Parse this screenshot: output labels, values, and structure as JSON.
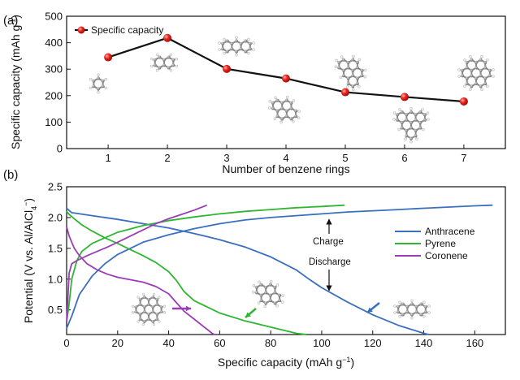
{
  "chart_data": [
    {
      "type": "line",
      "panel_label": "(a)",
      "xlabel": "Number of benzene rings",
      "ylabel_main": "Specific capacity (mAh g",
      "ylabel_sup": "-1",
      "ylabel_end": ")",
      "xlim": [
        0.3,
        7.7
      ],
      "ylim": [
        0,
        500
      ],
      "xticks": [
        1,
        2,
        3,
        4,
        5,
        6,
        7
      ],
      "yticks": [
        0,
        100,
        200,
        300,
        400,
        500
      ],
      "legend": "top-left",
      "series": [
        {
          "name": "Specific capacity",
          "color": "#e0201b",
          "x": [
            1,
            2,
            3,
            4,
            5,
            6,
            7
          ],
          "y": [
            345,
            418,
            301,
            265,
            213,
            195,
            178
          ]
        }
      ],
      "molecule_icons": [
        "benzene",
        "naphthalene",
        "anthracene",
        "pyrene",
        "perylene",
        "benzoperylene",
        "coronene"
      ]
    },
    {
      "type": "line",
      "panel_label": "(b)",
      "xlabel": "Specific capacity (mAh g",
      "xlabel_sup": "−1",
      "xlabel_end": ")",
      "ylabel_main": "Potential (V vs. Al/AlCl",
      "ylabel_sub": "4",
      "ylabel_sup": "−",
      "ylabel_end": ")",
      "xlim": [
        0,
        172
      ],
      "ylim": [
        0.1,
        2.5
      ],
      "xticks": [
        0,
        20,
        40,
        60,
        80,
        100,
        120,
        140,
        160
      ],
      "yticks": [
        0.5,
        1.0,
        1.5,
        2.0,
        2.5
      ],
      "ytick_labels": [
        "0.5",
        "1.0",
        "1.5",
        "2.0",
        "2.5"
      ],
      "legend": "right",
      "annotations": {
        "charge": "Charge",
        "discharge": "Discharge"
      },
      "series": [
        {
          "name": "Anthracene",
          "color": "#3a6fbf",
          "charge": {
            "x": [
              0,
              2,
              5,
              10,
              15,
              20,
              30,
              40,
              50,
              60,
              70,
              80,
              90,
              100,
              110,
              120,
              130,
              140,
              150,
              160,
              167
            ],
            "y": [
              0.2,
              0.4,
              0.75,
              1.05,
              1.25,
              1.4,
              1.6,
              1.72,
              1.82,
              1.9,
              1.96,
              2.0,
              2.03,
              2.06,
              2.09,
              2.11,
              2.13,
              2.15,
              2.17,
              2.19,
              2.2
            ]
          },
          "discharge": {
            "x": [
              0,
              2,
              10,
              20,
              30,
              40,
              50,
              60,
              70,
              80,
              90,
              95,
              100,
              110,
              120,
              130,
              140,
              142
            ],
            "y": [
              2.15,
              2.08,
              2.03,
              1.97,
              1.9,
              1.83,
              1.74,
              1.64,
              1.52,
              1.36,
              1.15,
              1.0,
              0.86,
              0.63,
              0.42,
              0.25,
              0.12,
              0.1
            ]
          }
        },
        {
          "name": "Pyrene",
          "color": "#2fb531",
          "charge": {
            "x": [
              0,
              1,
              2,
              4,
              6,
              10,
              15,
              20,
              30,
              40,
              50,
              60,
              70,
              80,
              90,
              100,
              109
            ],
            "y": [
              0.3,
              0.6,
              1.0,
              1.3,
              1.45,
              1.58,
              1.67,
              1.76,
              1.87,
              1.95,
              2.01,
              2.06,
              2.1,
              2.13,
              2.16,
              2.18,
              2.2
            ]
          },
          "discharge": {
            "x": [
              0,
              1,
              3,
              6,
              10,
              15,
              20,
              25,
              30,
              35,
              40,
              43,
              46,
              50,
              55,
              60,
              70,
              80,
              90,
              94
            ],
            "y": [
              2.1,
              2.05,
              1.98,
              1.88,
              1.78,
              1.67,
              1.58,
              1.48,
              1.38,
              1.27,
              1.12,
              0.98,
              0.8,
              0.65,
              0.55,
              0.45,
              0.32,
              0.22,
              0.12,
              0.1
            ]
          }
        },
        {
          "name": "Coronene",
          "color": "#9b3cb7",
          "charge": {
            "x": [
              0,
              0.5,
              1,
              2,
              4,
              8,
              12,
              16,
              20,
              25,
              30,
              35,
              40,
              45,
              50,
              55
            ],
            "y": [
              0.3,
              0.7,
              1.1,
              1.25,
              1.3,
              1.38,
              1.45,
              1.52,
              1.6,
              1.7,
              1.8,
              1.9,
              1.98,
              2.05,
              2.12,
              2.2
            ]
          },
          "discharge": {
            "x": [
              0,
              1,
              2,
              3,
              5,
              8,
              12,
              16,
              20,
              25,
              30,
              35,
              40,
              43,
              46,
              50,
              54,
              57,
              58
            ],
            "y": [
              1.85,
              1.7,
              1.6,
              1.5,
              1.38,
              1.25,
              1.15,
              1.08,
              1.03,
              0.99,
              0.95,
              0.88,
              0.76,
              0.62,
              0.48,
              0.35,
              0.22,
              0.12,
              0.1
            ]
          }
        }
      ]
    }
  ]
}
